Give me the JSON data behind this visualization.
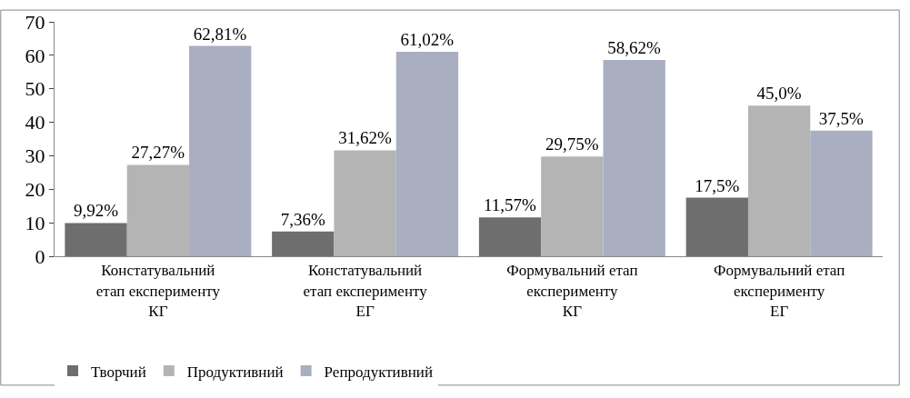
{
  "chart_data": {
    "type": "bar",
    "categories": [
      "Констатувальний\nетап експерименту\nКГ",
      "Констатувальний\nетап експерименту\nЕГ",
      "Формувальний етап\nексперименту\nКГ",
      "Формувальний етап\nексперименту\nЕГ"
    ],
    "series": [
      {
        "name": "Творчий",
        "color": "#6e6e6e",
        "values": [
          9.92,
          7.36,
          11.57,
          17.5
        ],
        "value_labels": [
          "9,92%",
          "7,36%",
          "11,57%",
          "17,5%"
        ]
      },
      {
        "name": "Продуктивний",
        "color": "#b4b4b4",
        "values": [
          27.27,
          31.62,
          29.75,
          45.0
        ],
        "value_labels": [
          "27,27%",
          "31,62%",
          "29,75%",
          "45,0%"
        ]
      },
      {
        "name": "Репродуктивний",
        "color": "#a9afc0",
        "values": [
          62.81,
          61.02,
          58.62,
          37.5
        ],
        "value_labels": [
          "62,81%",
          "61,02%",
          "58,62%",
          "37,5%"
        ]
      }
    ],
    "ylim": [
      0,
      70
    ],
    "yticks": [
      0,
      10,
      20,
      30,
      40,
      50,
      60,
      70
    ],
    "legend": "bottom left"
  }
}
